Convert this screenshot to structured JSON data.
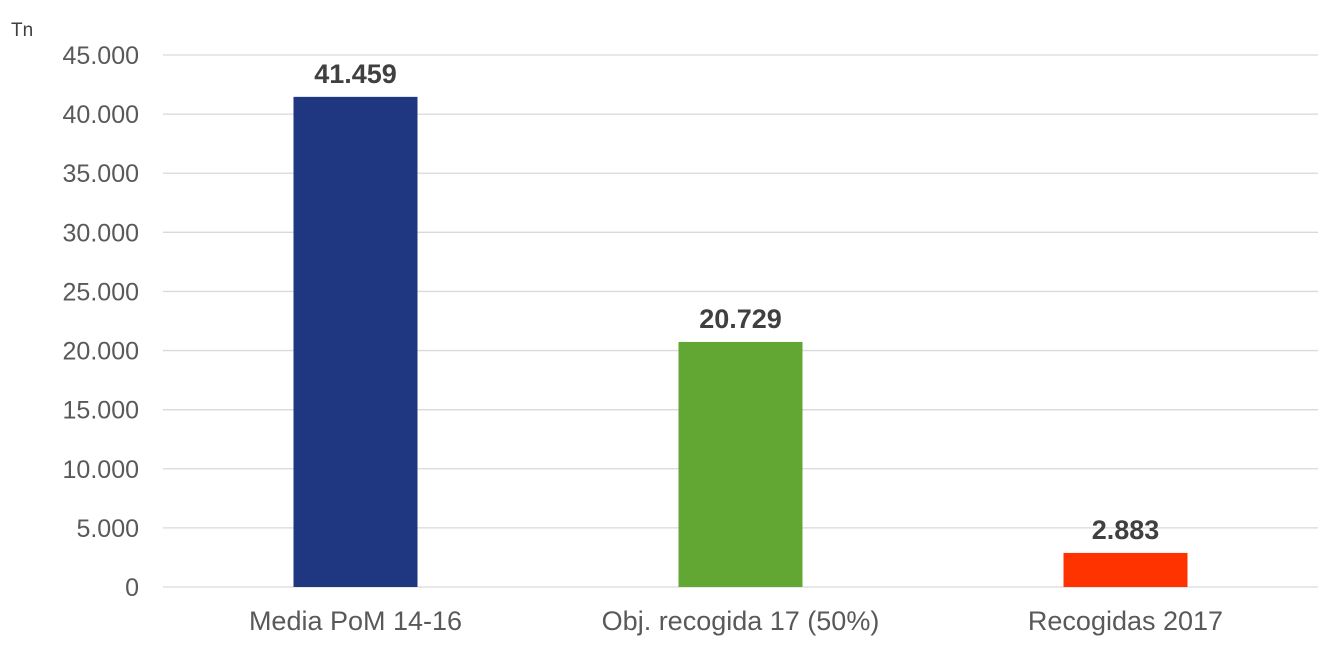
{
  "chart_data": {
    "type": "bar",
    "title": "",
    "xlabel": "",
    "ylabel": "Tn",
    "categories": [
      "Media PoM 14-16",
      "Obj. recogida 17 (50%)",
      "Recogidas 2017"
    ],
    "values": [
      41459,
      20729,
      2883
    ],
    "value_labels": [
      "41.459",
      "20.729",
      "2.883"
    ],
    "colors": [
      "#1f3680",
      "#62a733",
      "#ff3300"
    ],
    "ylim": [
      0,
      45000
    ],
    "yticks": [
      0,
      5000,
      10000,
      15000,
      20000,
      25000,
      30000,
      35000,
      40000,
      45000
    ],
    "ytick_labels": [
      "0",
      "5.000",
      "10.000",
      "15.000",
      "20.000",
      "25.000",
      "30.000",
      "35.000",
      "40.000",
      "45.000"
    ],
    "grid": true,
    "legend": "none"
  }
}
